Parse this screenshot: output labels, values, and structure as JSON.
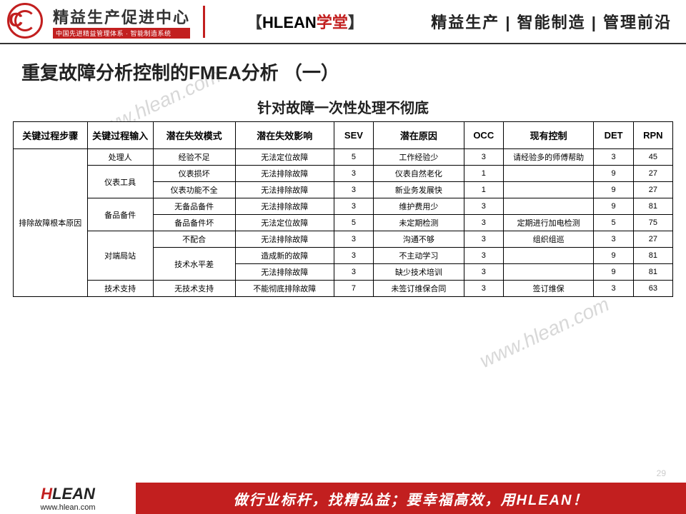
{
  "header": {
    "logo_main": "精益生产促进中心",
    "logo_sub": "中国先进精益管理体系 · 智能制造系统",
    "mid_prefix": "【",
    "mid_black": "HLEAN",
    "mid_red": "学堂",
    "mid_suffix": "】",
    "right": "精益生产 | 智能制造 | 管理前沿"
  },
  "title": "重复故障分析控制的FMEA分析 （一）",
  "subtitle": "针对故障一次性处理不彻底",
  "watermark": "www.hlean.com",
  "table": {
    "columns": [
      "关键过程步骤",
      "关键过程输入",
      "潜在失效模式",
      "潜在失效影响",
      "SEV",
      "潜在原因",
      "OCC",
      "现有控制",
      "DET",
      "RPN"
    ],
    "col_widths": [
      "90px",
      "80px",
      "100px",
      "120px",
      "48px",
      "110px",
      "48px",
      "110px",
      "48px",
      "48px"
    ],
    "step_label": "排除故障根本原因",
    "groups": [
      {
        "input": "处理人",
        "rows": [
          {
            "mode": "经验不足",
            "effect": "无法定位故障",
            "sev": "5",
            "cause": "工作经验少",
            "occ": "3",
            "control": "请经验多的师傅帮助",
            "det": "3",
            "rpn": "45"
          }
        ]
      },
      {
        "input": "仪表工具",
        "rows": [
          {
            "mode": "仪表损坏",
            "effect": "无法排除故障",
            "sev": "3",
            "cause": "仪表自然老化",
            "occ": "1",
            "control": "",
            "det": "9",
            "rpn": "27"
          },
          {
            "mode": "仪表功能不全",
            "effect": "无法排除故障",
            "sev": "3",
            "cause": "新业务发展快",
            "occ": "1",
            "control": "",
            "det": "9",
            "rpn": "27"
          }
        ]
      },
      {
        "input": "备品备件",
        "rows": [
          {
            "mode": "无备品备件",
            "effect": "无法排除故障",
            "sev": "3",
            "cause": "维护费用少",
            "occ": "3",
            "control": "",
            "det": "9",
            "rpn": "81"
          },
          {
            "mode": "备品备件坏",
            "effect": "无法定位故障",
            "sev": "5",
            "cause": "未定期检测",
            "occ": "3",
            "control": "定期进行加电检测",
            "det": "5",
            "rpn": "75"
          }
        ]
      },
      {
        "input": "对端局站",
        "rows": [
          {
            "mode": "不配合",
            "effect": "无法排除故障",
            "sev": "3",
            "cause": "沟通不够",
            "occ": "3",
            "control": "组织组巡",
            "det": "3",
            "rpn": "27"
          },
          {
            "mode_span": 2,
            "mode": "技术水平差",
            "effect": "造成新的故障",
            "sev": "3",
            "cause": "不主动学习",
            "occ": "3",
            "control": "",
            "det": "9",
            "rpn": "81"
          },
          {
            "effect": "无法排除故障",
            "sev": "3",
            "cause": "缺少技术培训",
            "occ": "3",
            "control": "",
            "det": "9",
            "rpn": "81"
          }
        ]
      },
      {
        "input": "技术支持",
        "rows": [
          {
            "mode": "无技术支持",
            "effect": "不能彻底排除故障",
            "sev": "7",
            "cause": "未签订维保合同",
            "occ": "3",
            "control": "签订维保",
            "det": "3",
            "rpn": "63"
          }
        ]
      }
    ]
  },
  "footer": {
    "logo_h": "H",
    "logo_lean": "LEAN",
    "url": "www.hlean.com",
    "banner": "做行业标杆，找精弘益；要幸福高效，用HLEAN！"
  },
  "page_num": "29"
}
